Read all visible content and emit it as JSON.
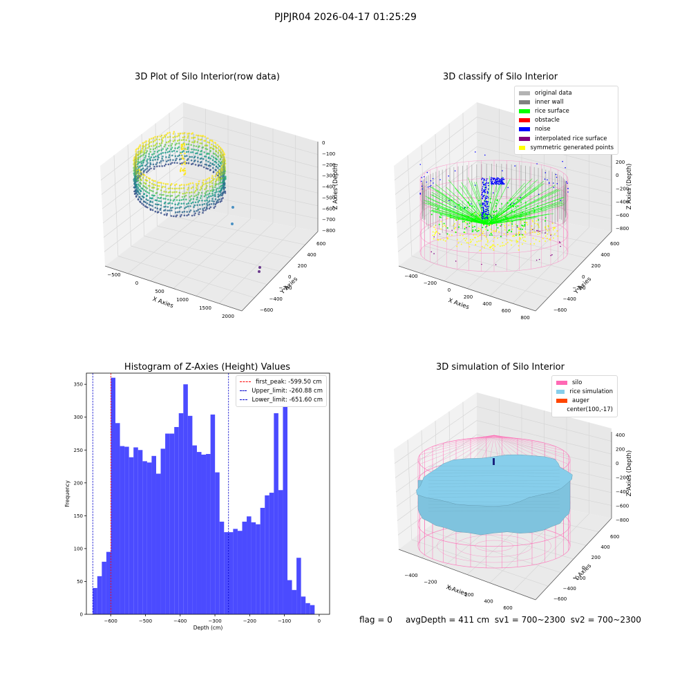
{
  "figure": {
    "suptitle": "PJPJR04 2026-04-17 01:25:29",
    "footer": {
      "flag": "flag = 0",
      "avg_depth": "avgDepth = 411 cm",
      "sv1": "sv1 = 700~2300",
      "sv2": "sv2 = 700~2300"
    }
  },
  "colors": {
    "histogram_bar": "#4b4bff",
    "first_peak_line": "#ff0000",
    "limit_line": "#0000cc",
    "silo": "#ff69b4",
    "rice_simulation": "#87ceeb",
    "auger": "#ff4500",
    "original_data": "#b3b3b3",
    "inner_wall": "#808080",
    "rice_surface": "#00ff00",
    "obstacle": "#ff0000",
    "noise": "#0000ff",
    "interpolated_rice_surface": "#800080",
    "symmetric_generated_points": "#ffff00"
  },
  "chart_data": [
    {
      "type": "scatter",
      "title": "3D Plot of Silo Interior(row data)",
      "xlabel": "X Axies",
      "ylabel": "Y Axies",
      "zlabel": "Z Axies (Depth)",
      "xticks": [
        "−500",
        "0",
        "500",
        "1000",
        "1500",
        "2000"
      ],
      "yticks": [
        "−600",
        "−400",
        "−200",
        "0",
        "200",
        "400",
        "600"
      ],
      "zticks": [
        "0",
        "−100",
        "−200",
        "−300",
        "−400",
        "−500",
        "−600",
        "−700",
        "−800"
      ],
      "xlim": [
        -600,
        2050
      ],
      "ylim": [
        -650,
        650
      ],
      "zlim": [
        -850,
        0
      ]
    },
    {
      "type": "scatter",
      "title": "3D classify of Silo Interior",
      "xlabel": "X Axies",
      "ylabel": "Y Axies",
      "zlabel": "Z Axies (Depth)",
      "xticks": [
        "−400",
        "−200",
        "0",
        "200",
        "400",
        "600",
        "800"
      ],
      "yticks": [
        "−600",
        "−400",
        "−200",
        "0",
        "200",
        "400",
        "600"
      ],
      "zticks": [
        "200",
        "0",
        "−200",
        "−400",
        "−600",
        "−800"
      ],
      "xlim": [
        -500,
        850
      ],
      "ylim": [
        -650,
        650
      ],
      "zlim": [
        -850,
        300
      ],
      "legend": [
        {
          "label": "original data",
          "color": "#b3b3b3"
        },
        {
          "label": "inner wall",
          "color": "#808080"
        },
        {
          "label": "rice surface",
          "color": "#00ff00"
        },
        {
          "label": "obstacle",
          "color": "#ff0000"
        },
        {
          "label": "noise",
          "color": "#0000ff"
        },
        {
          "label": "interpolated rice surface",
          "color": "#800080"
        },
        {
          "label": "symmetric generated points",
          "color": "#ffff00"
        }
      ],
      "legend_position": "upper-right"
    },
    {
      "type": "bar",
      "title": "Histogram of Z-Axies (Height) Values",
      "xlabel": "Depth (cm)",
      "ylabel": "Frequency",
      "xlim": [
        -670,
        30
      ],
      "ylim": [
        0,
        367
      ],
      "xticks": [
        -600,
        -500,
        -400,
        -300,
        -200,
        -100,
        0
      ],
      "yticks": [
        0,
        50,
        100,
        150,
        200,
        250,
        300,
        350
      ],
      "bin_start": -651.6,
      "bin_width": 13.03,
      "values": [
        40,
        58,
        80,
        95,
        360,
        291,
        256,
        255,
        239,
        254,
        250,
        233,
        231,
        241,
        214,
        252,
        275,
        275,
        285,
        306,
        350,
        302,
        257,
        247,
        243,
        244,
        304,
        216,
        141,
        125,
        125,
        130,
        127,
        141,
        149,
        140,
        137,
        162,
        181,
        185,
        306,
        189,
        322,
        52,
        37,
        86,
        27,
        17,
        14
      ],
      "vlines": [
        {
          "value": -599.5,
          "label": "first_peak: -599.50 cm",
          "color": "#ff0000"
        },
        {
          "value": -260.88,
          "label": "Upper_limit: -260.88 cm",
          "color": "#0000cc"
        },
        {
          "value": -651.6,
          "label": "Lower_limit: -651.60 cm",
          "color": "#0000cc"
        }
      ],
      "legend_position": "upper-right"
    },
    {
      "type": "area",
      "title": "3D simulation of Silo Interior",
      "xlabel": "X Axies",
      "ylabel": "Y Axies",
      "zlabel": "Z Axies (Depth)",
      "xticks": [
        "−400",
        "−200",
        "0",
        "200",
        "400",
        "600"
      ],
      "yticks": [
        "−600",
        "−400",
        "−200",
        "0",
        "200",
        "400",
        "600"
      ],
      "zticks": [
        "400",
        "200",
        "0",
        "−200",
        "−400",
        "−600",
        "−800"
      ],
      "xlim": [
        -500,
        700
      ],
      "ylim": [
        -650,
        650
      ],
      "zlim": [
        -850,
        450
      ],
      "legend": [
        {
          "label": "silo",
          "color": "#ff69b4"
        },
        {
          "label": "rice simulation",
          "color": "#87ceeb"
        },
        {
          "label": "auger",
          "color": "#ff4500"
        },
        {
          "label": "center(100,-17)",
          "color": ""
        }
      ],
      "legend_position": "upper-right"
    }
  ]
}
